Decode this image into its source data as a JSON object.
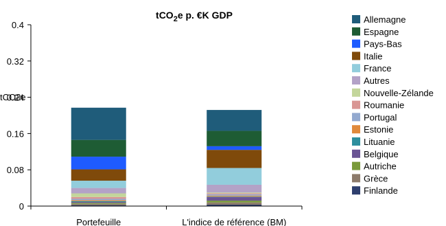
{
  "chart_data": {
    "type": "bar",
    "stacked": true,
    "title": "tCO2e p. €K GDP",
    "title_main": "tCO",
    "title_sub": "2",
    "title_rest": "e p. €K GDP",
    "ylabel": "tCO2e",
    "ylim": [
      0,
      0.4
    ],
    "yticks": [
      0,
      0.08,
      0.16,
      0.24,
      0.32,
      0.4
    ],
    "ytick_labels": [
      "0",
      "0.08",
      "0.16",
      "0.24",
      "0.32",
      "0.4"
    ],
    "categories": [
      "Portefeuille",
      "L'indice de référence (BM)"
    ],
    "legend_position": "right",
    "grid": false,
    "series": [
      {
        "name": "Finlande",
        "color": "#2E3F6E",
        "values": [
          0.002,
          0.003
        ]
      },
      {
        "name": "Grèce",
        "color": "#8C7B6B",
        "values": [
          0.003,
          0.005
        ]
      },
      {
        "name": "Autriche",
        "color": "#7A9A3A",
        "values": [
          0.002,
          0.004
        ]
      },
      {
        "name": "Belgique",
        "color": "#6A5494",
        "values": [
          0.002,
          0.008
        ]
      },
      {
        "name": "Lituanie",
        "color": "#2E8F9E",
        "values": [
          0.002,
          0.001
        ]
      },
      {
        "name": "Estonie",
        "color": "#E08A3C",
        "values": [
          0.002,
          0.002
        ]
      },
      {
        "name": "Portugal",
        "color": "#93A9CF",
        "values": [
          0.003,
          0.003
        ]
      },
      {
        "name": "Roumanie",
        "color": "#D99694",
        "values": [
          0.004,
          0.002
        ]
      },
      {
        "name": "Nouvelle-Zélande",
        "color": "#C3D69B",
        "values": [
          0.008,
          0.002
        ]
      },
      {
        "name": "Autres",
        "color": "#B3A2C7",
        "values": [
          0.012,
          0.017
        ]
      },
      {
        "name": "France",
        "color": "#92CDDC",
        "values": [
          0.016,
          0.037
        ]
      },
      {
        "name": "Italie",
        "color": "#7F4A0B",
        "values": [
          0.025,
          0.04
        ]
      },
      {
        "name": "Pays-Bas",
        "color": "#1E5BFF",
        "values": [
          0.028,
          0.008
        ]
      },
      {
        "name": "Espagne",
        "color": "#1E5C34",
        "values": [
          0.037,
          0.034
        ]
      },
      {
        "name": "Allemagne",
        "color": "#1F5C7A",
        "values": [
          0.071,
          0.046
        ]
      }
    ],
    "legend_order": [
      "Allemagne",
      "Espagne",
      "Pays-Bas",
      "Italie",
      "France",
      "Autres",
      "Nouvelle-Zélande",
      "Roumanie",
      "Portugal",
      "Estonie",
      "Lituanie",
      "Belgique",
      "Autriche",
      "Grèce",
      "Finlande"
    ]
  }
}
